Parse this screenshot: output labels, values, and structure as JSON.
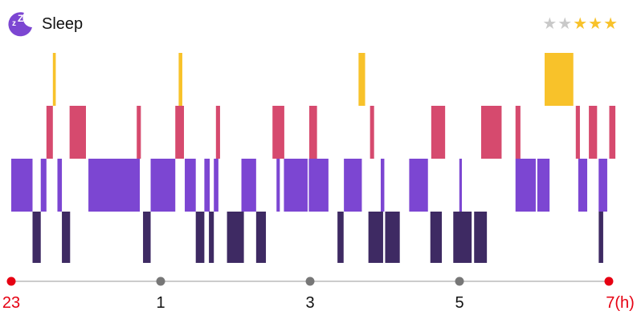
{
  "app": {
    "title": "Sleep",
    "icon": "moon-zz-icon"
  },
  "rating": {
    "value": 3,
    "max": 5,
    "filled_color": "#F8C22A",
    "empty_color": "#C9C9C9"
  },
  "colors": {
    "awake": "#F8C22A",
    "rem": "#D64A6E",
    "light": "#7C46D2",
    "deep": "#3E2A63",
    "axis": "#CCCCCC",
    "tick_mid": "#777777",
    "tick_end": "#E60012",
    "label_end": "#E60012",
    "label_mid": "#111111"
  },
  "chart_data": {
    "type": "timeline",
    "x_start": 23,
    "x_end": 7,
    "x_unit": "h",
    "ticks": [
      {
        "hour": 23,
        "label": "23",
        "end": true
      },
      {
        "hour": 1,
        "label": "1",
        "end": false
      },
      {
        "hour": 3,
        "label": "3",
        "end": false
      },
      {
        "hour": 5,
        "label": "5",
        "end": false
      },
      {
        "hour": 7,
        "label": "7(h)",
        "end": true
      }
    ],
    "stages": [
      "awake",
      "rem",
      "light",
      "deep"
    ],
    "segments": {
      "awake": [
        [
          0.557,
          0.596
        ],
        [
          2.241,
          2.29
        ],
        [
          4.649,
          4.737
        ],
        [
          7.14,
          7.524
        ]
      ],
      "rem": [
        [
          0.471,
          0.557
        ],
        [
          0.781,
          1.0
        ],
        [
          1.68,
          1.735
        ],
        [
          2.196,
          2.312
        ],
        [
          2.74,
          2.795
        ],
        [
          3.497,
          3.655
        ],
        [
          3.989,
          4.093
        ],
        [
          4.803,
          4.857
        ],
        [
          5.622,
          5.808
        ],
        [
          6.29,
          6.564
        ],
        [
          6.75,
          6.816
        ],
        [
          7.557,
          7.612
        ],
        [
          7.732,
          7.842
        ],
        [
          8.005,
          8.087
        ]
      ],
      "light": [
        [
          0.0,
          0.285
        ],
        [
          0.395,
          0.471
        ],
        [
          0.618,
          0.678
        ],
        [
          1.033,
          1.721
        ],
        [
          1.866,
          2.196
        ],
        [
          2.323,
          2.47
        ],
        [
          2.585,
          2.657
        ],
        [
          2.712,
          2.773
        ],
        [
          3.081,
          3.278
        ],
        [
          3.551,
          3.595
        ],
        [
          3.65,
          3.967
        ],
        [
          3.983,
          4.246
        ],
        [
          4.453,
          4.693
        ],
        [
          4.946,
          4.994
        ],
        [
          5.327,
          5.578
        ],
        [
          5.998,
          6.032
        ],
        [
          6.75,
          7.021
        ],
        [
          7.042,
          7.206
        ],
        [
          7.59,
          7.71
        ],
        [
          7.863,
          7.978
        ]
      ],
      "deep": [
        [
          0.285,
          0.395
        ],
        [
          0.678,
          0.788
        ],
        [
          1.764,
          1.866
        ],
        [
          2.47,
          2.585
        ],
        [
          2.646,
          2.712
        ],
        [
          2.888,
          3.114
        ],
        [
          3.278,
          3.409
        ],
        [
          4.367,
          4.449
        ],
        [
          4.781,
          4.978
        ],
        [
          5.005,
          5.201
        ],
        [
          5.61,
          5.764
        ],
        [
          5.917,
          6.163
        ],
        [
          6.196,
          6.367
        ],
        [
          7.864,
          7.924
        ]
      ]
    }
  }
}
